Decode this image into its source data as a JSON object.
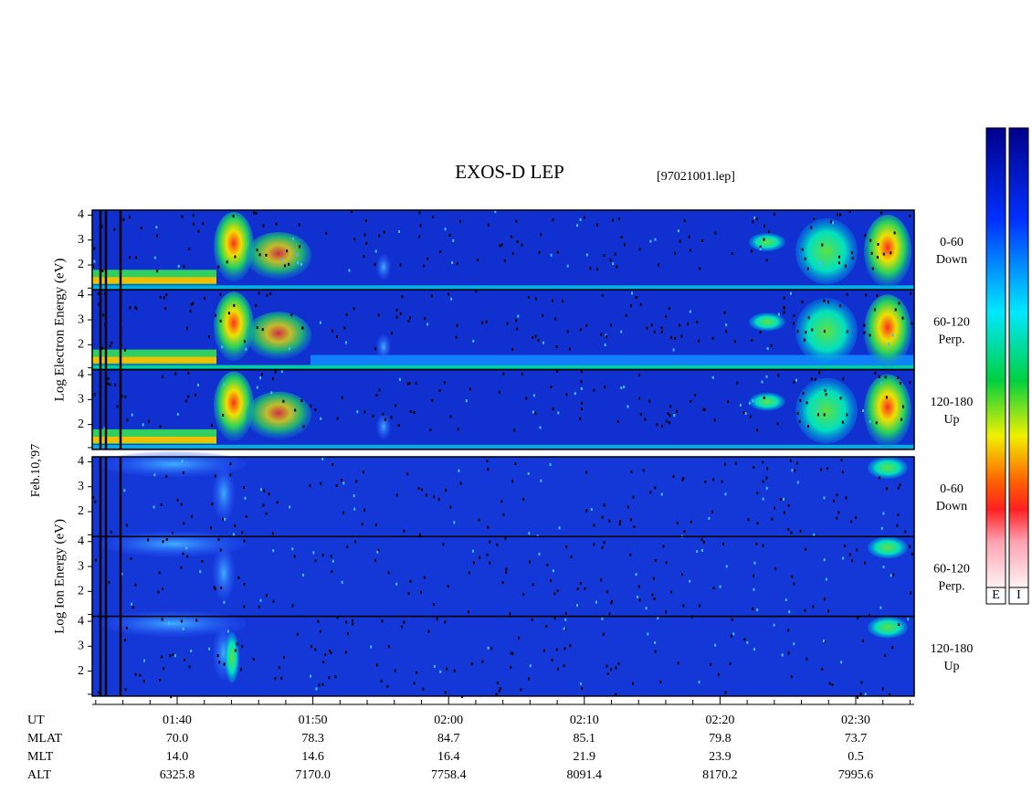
{
  "header": {
    "title": "EXOS-D LEP",
    "file": "[97021001.lep]"
  },
  "date": "Feb.10,'97",
  "panels": [
    {
      "axis_label": "Log  Electron  Energy (eV)",
      "subpanels": [
        {
          "angle": "0-60",
          "direction": "Down"
        },
        {
          "angle": "60-120",
          "direction": "Perp."
        },
        {
          "angle": "120-180",
          "direction": "Up"
        }
      ]
    },
    {
      "axis_label": "Log  Ion  Energy (eV)",
      "subpanels": [
        {
          "angle": "0-60",
          "direction": "Down"
        },
        {
          "angle": "60-120",
          "direction": "Perp."
        },
        {
          "angle": "120-180",
          "direction": "Up"
        }
      ]
    }
  ],
  "yticks": [
    2,
    3,
    4
  ],
  "ylim": [
    1,
    4.2
  ],
  "footer": {
    "row_labels": [
      "UT",
      "MLAT",
      "MLT",
      "ALT"
    ],
    "columns": [
      [
        "01:40",
        "70.0",
        "14.0",
        "6325.8"
      ],
      [
        "01:50",
        "78.3",
        "14.6",
        "7170.0"
      ],
      [
        "02:00",
        "84.7",
        "16.4",
        "7758.4"
      ],
      [
        "02:10",
        "85.1",
        "21.9",
        "8091.4"
      ],
      [
        "02:20",
        "79.8",
        "23.9",
        "8170.2"
      ],
      [
        "02:30",
        "73.7",
        "0.5",
        "7995.6"
      ]
    ]
  },
  "colorbars": [
    "E",
    "I"
  ]
}
